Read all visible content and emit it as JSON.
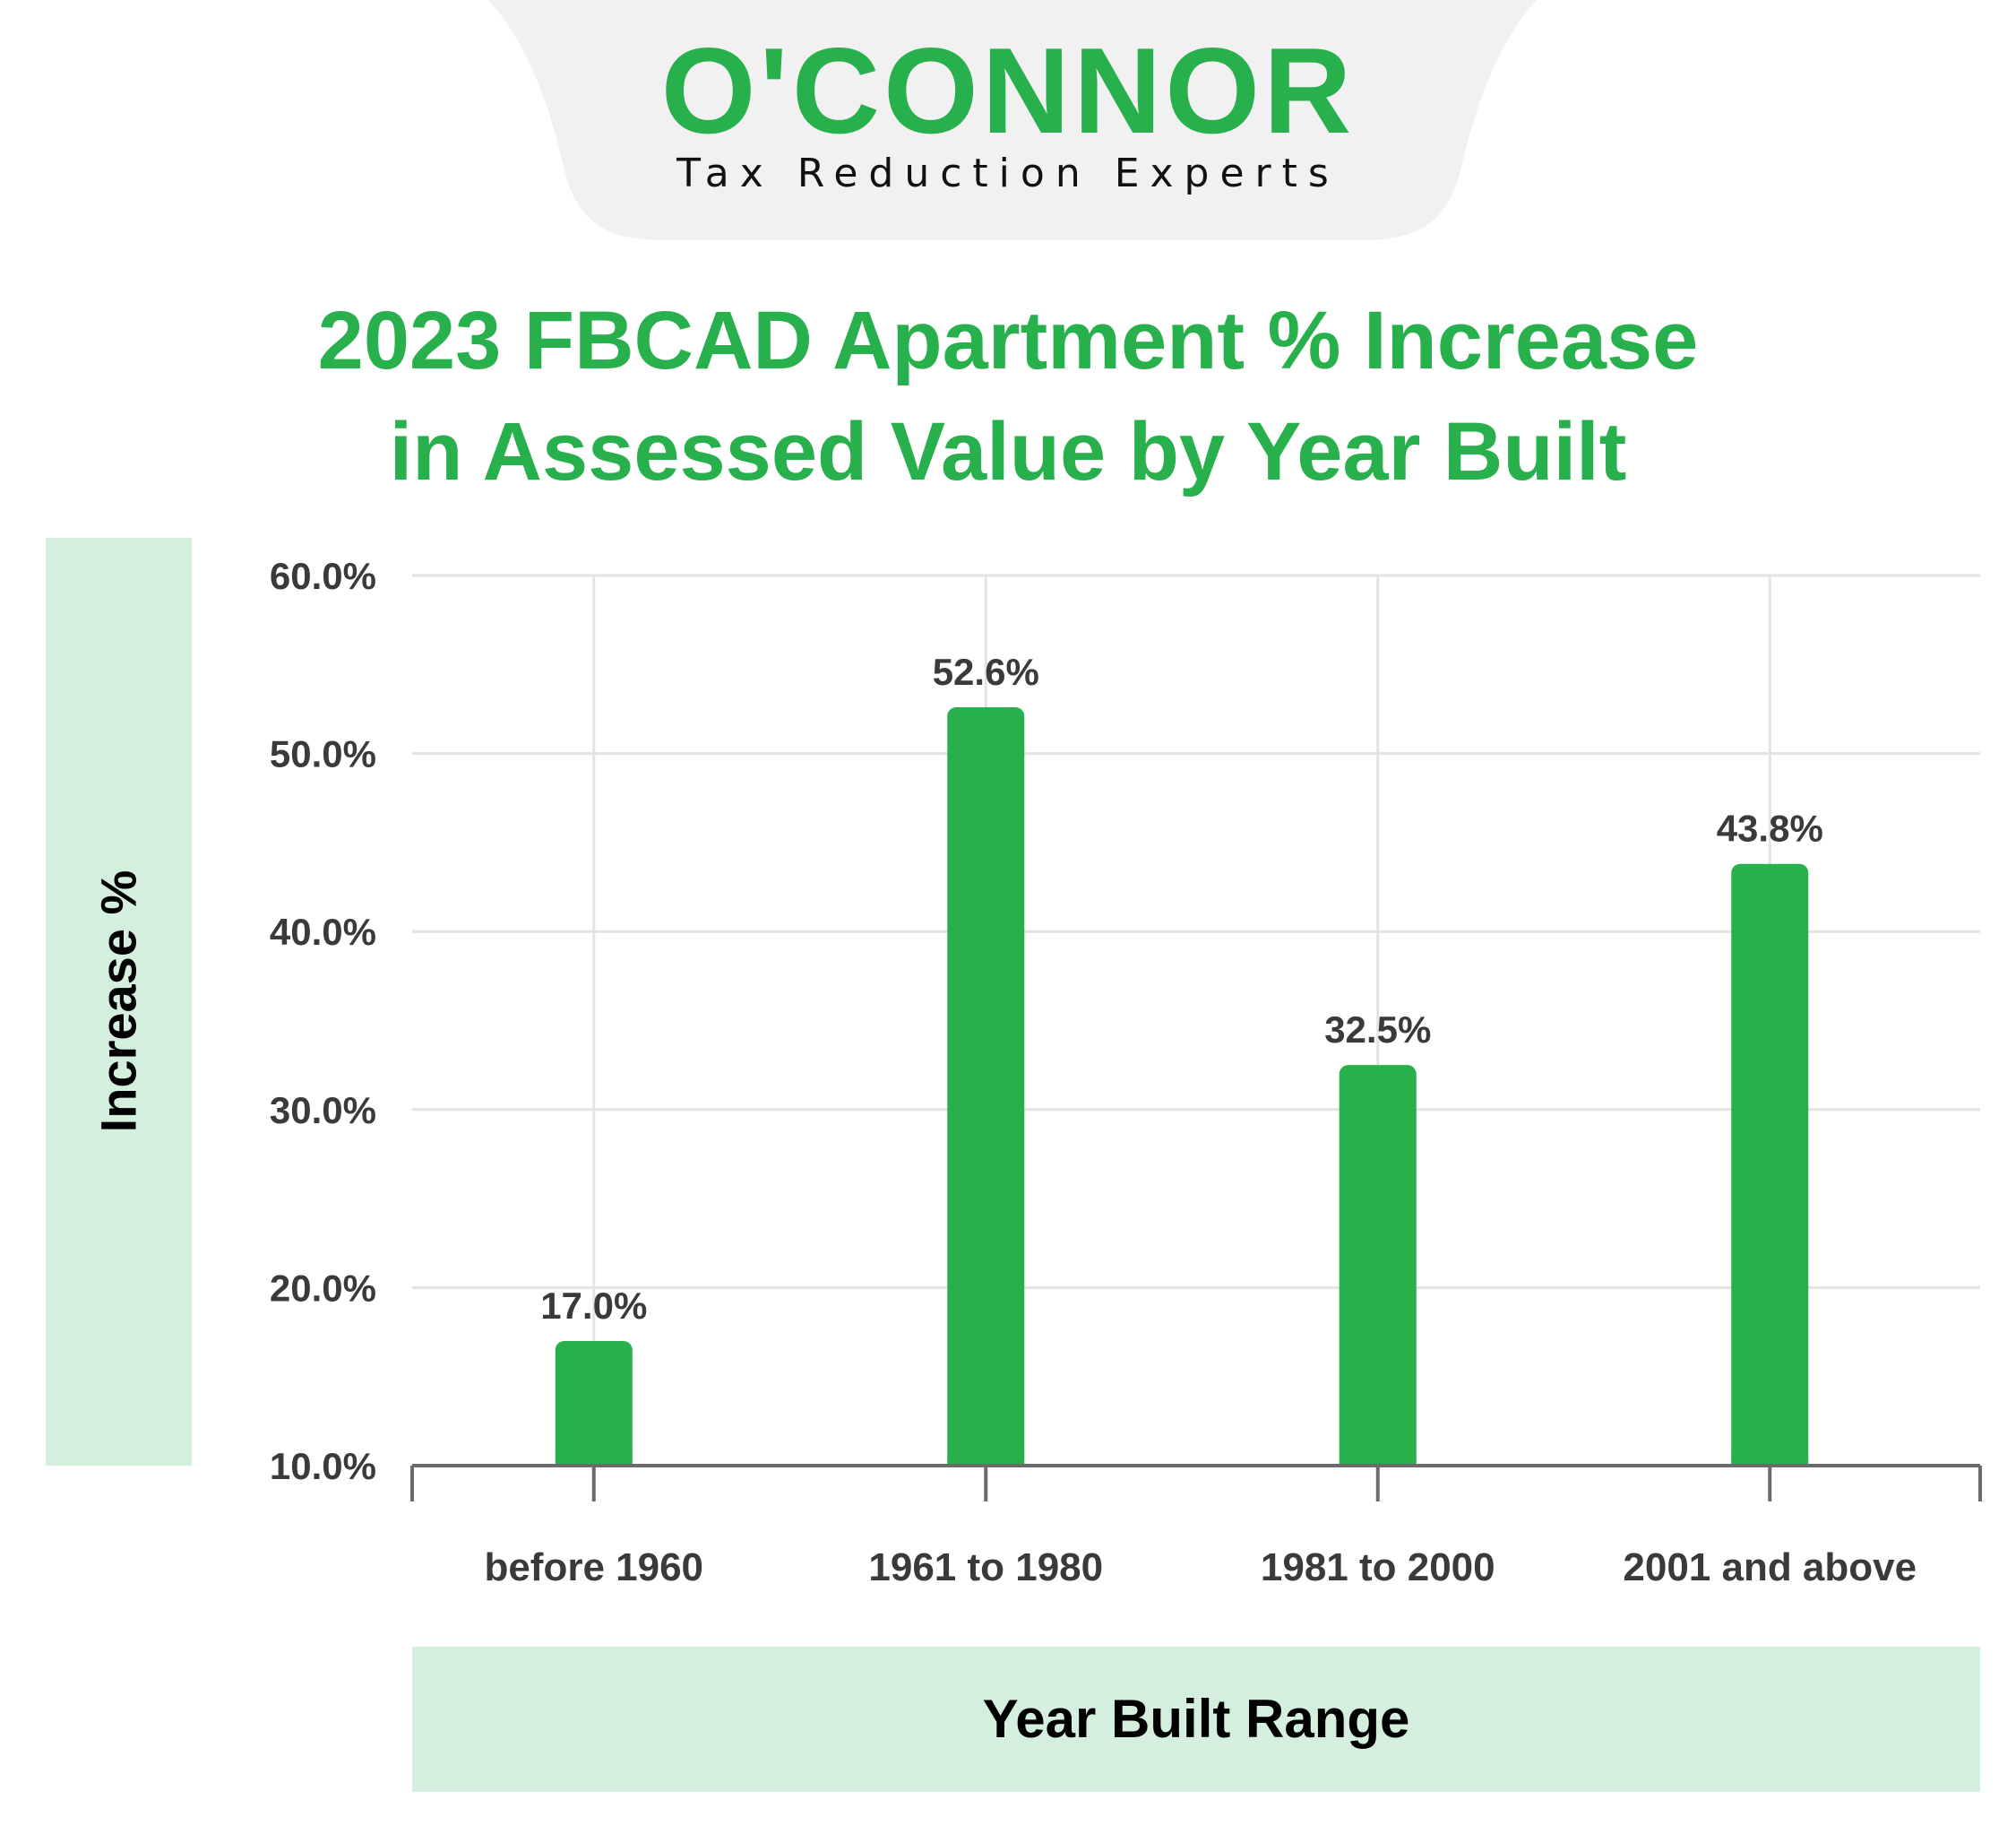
{
  "brand": {
    "name": "O'CONNOR",
    "tagline": "Tax Reduction Experts",
    "color": "#28b04c",
    "tab_color": "#f1f1f1"
  },
  "chart_data": {
    "type": "bar",
    "title_lines": [
      "2023 FBCAD Apartment % Increase",
      "in Assessed Value by Year Built"
    ],
    "xlabel": "Year Built Range",
    "ylabel": "Increase %",
    "categories": [
      "before 1960",
      "1961 to 1980",
      "1981 to 2000",
      "2001 and above"
    ],
    "values": [
      17.0,
      52.6,
      32.5,
      43.8
    ],
    "value_labels": [
      "17.0%",
      "52.6%",
      "32.5%",
      "43.8%"
    ],
    "ylim": [
      10,
      60
    ],
    "yticks": [
      10,
      20,
      30,
      40,
      50,
      60
    ],
    "ytick_labels": [
      "10.0%",
      "20.0%",
      "30.0%",
      "40.0%",
      "50.0%",
      "60.0%"
    ],
    "grid": true,
    "bar_color": "#28b04c",
    "label_panel_color": "#d5efde"
  }
}
